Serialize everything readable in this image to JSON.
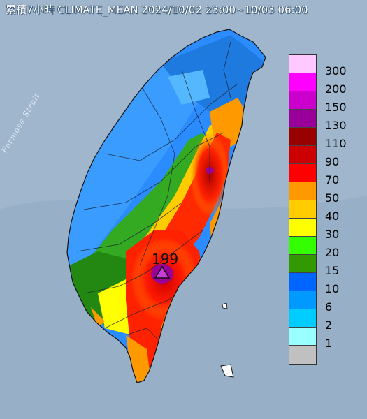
{
  "map": {
    "title": "累積7小時 CLIMATE_MEAN 2024/10/02 23:00~10/03 06:00",
    "sea_label": "Formosa Strait",
    "max_rainfall_label": "199",
    "max_marker_icon": "triangle-icon",
    "colors": {
      "sea": "#9fb6cc",
      "marker": "#c83cd8"
    }
  },
  "legend": {
    "items": [
      {
        "label": "300",
        "color": "#ffc8ff"
      },
      {
        "label": "200",
        "color": "#ff00ff"
      },
      {
        "label": "150",
        "color": "#cc00cc"
      },
      {
        "label": "130",
        "color": "#990099"
      },
      {
        "label": "110",
        "color": "#990000"
      },
      {
        "label": "90",
        "color": "#cc0000"
      },
      {
        "label": "70",
        "color": "#ff0000"
      },
      {
        "label": "50",
        "color": "#ff9900"
      },
      {
        "label": "40",
        "color": "#ffcc00"
      },
      {
        "label": "30",
        "color": "#ffff00"
      },
      {
        "label": "20",
        "color": "#33ff00"
      },
      {
        "label": "15",
        "color": "#339900"
      },
      {
        "label": "10",
        "color": "#0066ff"
      },
      {
        "label": "6",
        "color": "#0099ff"
      },
      {
        "label": "2",
        "color": "#00ccff"
      },
      {
        "label": "1",
        "color": "#99ffff"
      },
      {
        "label": "",
        "color": "#c0c0c0"
      }
    ]
  }
}
